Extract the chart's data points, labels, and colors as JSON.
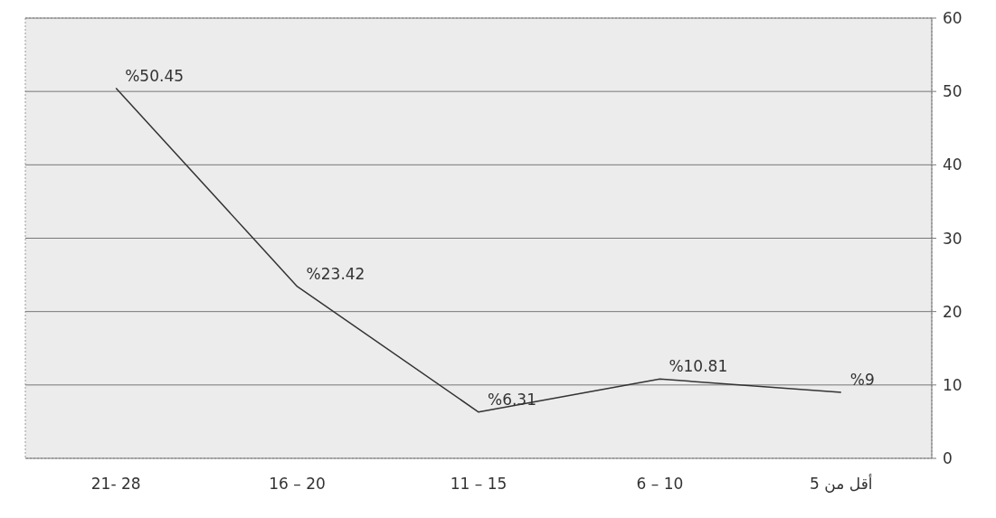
{
  "chart_data": {
    "type": "line",
    "categories": [
      "21- 28",
      "16 – 20",
      "11 – 15",
      "6 – 10",
      "أقل من 5"
    ],
    "series": [
      {
        "color": "#333333",
        "values": [
          50.45,
          23.42,
          6.31,
          10.81,
          9
        ],
        "value_labels": [
          "%50.45",
          "%23.42",
          "%6.31",
          "%10.81",
          "%9"
        ]
      }
    ],
    "ylim": [
      0,
      60
    ],
    "yticks": [
      0,
      10,
      20,
      30,
      40,
      50,
      60
    ],
    "grid": "y",
    "marker": "none",
    "line_style": "solid"
  }
}
